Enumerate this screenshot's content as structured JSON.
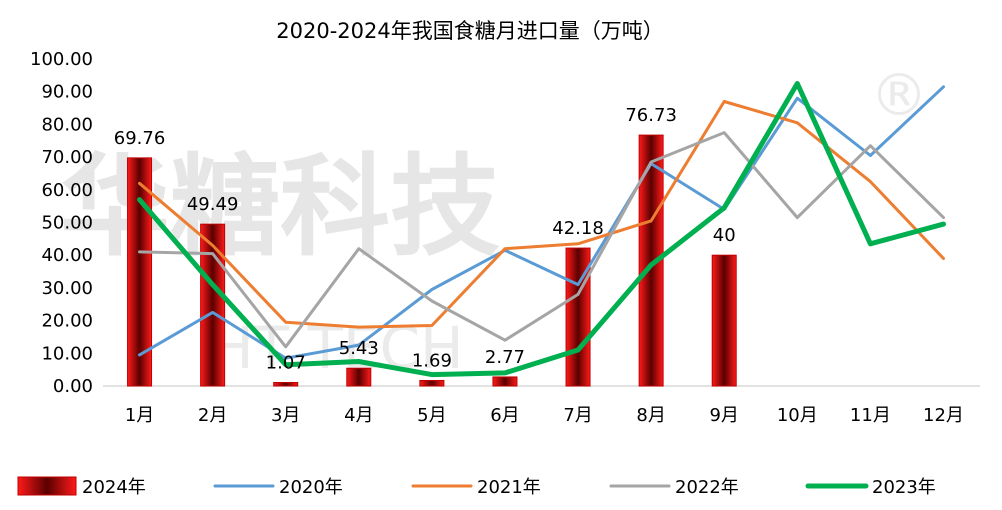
{
  "chart_data": {
    "type": "bar+line",
    "title": "2020-2024年我国食糖月进口量（万吨）",
    "categories": [
      "1月",
      "2月",
      "3月",
      "4月",
      "5月",
      "6月",
      "7月",
      "8月",
      "9月",
      "10月",
      "11月",
      "12月"
    ],
    "ylim": [
      0,
      100
    ],
    "yticks": [
      "0.00",
      "10.00",
      "20.00",
      "30.00",
      "40.00",
      "50.00",
      "60.00",
      "70.00",
      "80.00",
      "90.00",
      "100.00"
    ],
    "legend_position": "bottom",
    "bar_series": {
      "name": "2024年",
      "values": [
        69.76,
        49.49,
        1.07,
        5.43,
        1.69,
        2.77,
        42.18,
        76.73,
        40,
        null,
        null,
        null
      ],
      "labels": [
        "69.76",
        "49.49",
        "1.07",
        "5.43",
        "1.69",
        "2.77",
        "42.18",
        "76.73",
        "40",
        "",
        "",
        ""
      ],
      "color": "#e00000"
    },
    "line_series": [
      {
        "name": "2020年",
        "color": "#5b9bd5",
        "width": 3,
        "values": [
          9.5,
          22.5,
          8.5,
          12.5,
          29.5,
          41.5,
          31.0,
          68.0,
          54.0,
          88.0,
          70.5,
          91.5
        ]
      },
      {
        "name": "2021年",
        "color": "#ed7d31",
        "width": 3,
        "values": [
          62.0,
          43.0,
          19.5,
          18.0,
          18.5,
          42.0,
          43.5,
          50.5,
          87.0,
          80.5,
          62.5,
          39.0
        ]
      },
      {
        "name": "2022年",
        "color": "#a5a5a5",
        "width": 3,
        "values": [
          41.0,
          40.5,
          12.0,
          42.0,
          26.0,
          14.0,
          28.0,
          68.5,
          77.5,
          51.5,
          73.5,
          51.5
        ]
      },
      {
        "name": "2023年",
        "color": "#00b050",
        "width": 5,
        "values": [
          57.0,
          31.0,
          6.5,
          7.5,
          3.5,
          4.0,
          11.0,
          37.0,
          54.5,
          92.5,
          43.5,
          49.5
        ]
      }
    ],
    "watermark": {
      "main": "华糖科技",
      "sub": "HT TECH",
      "mark": "®"
    }
  }
}
